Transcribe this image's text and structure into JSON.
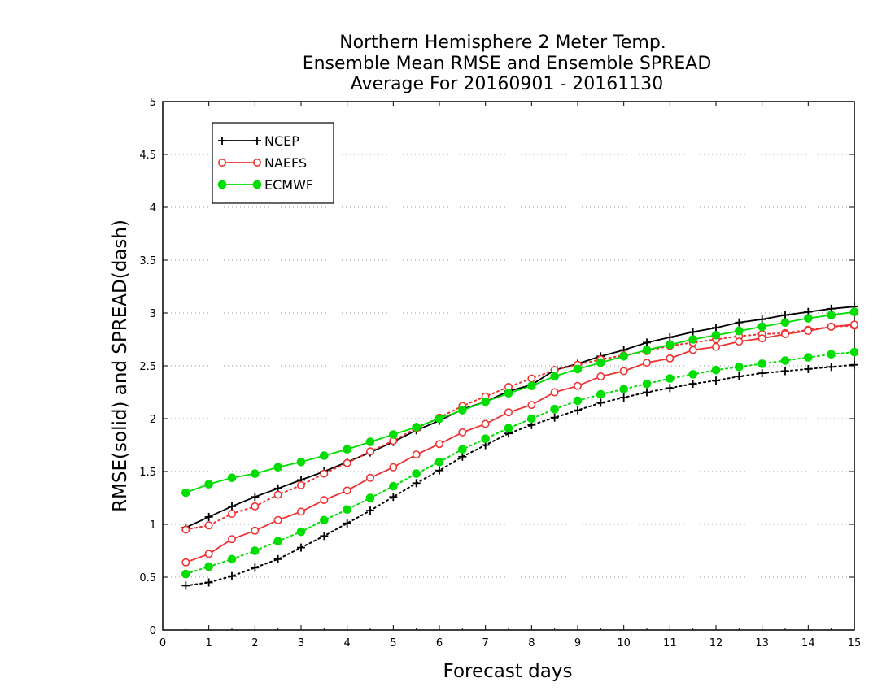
{
  "chart_data": {
    "type": "line",
    "title_lines": [
      "Northern Hemisphere 2 Meter Temp.",
      "Ensemble Mean RMSE and Ensemble SPREAD",
      "Average For 20160901 - 20161130"
    ],
    "xlabel": "Forecast days",
    "ylabel": "RMSE(solid) and SPREAD(dash)",
    "xlim": [
      0,
      15
    ],
    "ylim": [
      0,
      5
    ],
    "x_ticks": [
      "0",
      "1",
      "2",
      "3",
      "4",
      "5",
      "6",
      "7",
      "8",
      "9",
      "10",
      "11",
      "12",
      "13",
      "14",
      "15"
    ],
    "y_ticks": [
      "0",
      "0.5",
      "1",
      "1.5",
      "2",
      "2.5",
      "3",
      "3.5",
      "4",
      "4.5",
      "5"
    ],
    "horizontal_grid": true,
    "legend_position": "top-left",
    "x": [
      0.5,
      1,
      1.5,
      2,
      2.5,
      3,
      3.5,
      4,
      4.5,
      5,
      5.5,
      6,
      6.5,
      7,
      7.5,
      8,
      8.5,
      9,
      9.5,
      10,
      10.5,
      11,
      11.5,
      12,
      12.5,
      13,
      13.5,
      14,
      14.5,
      15
    ],
    "series": [
      {
        "name": "NCEP",
        "color": "#000000",
        "marker": "plus",
        "rmse": [
          0.97,
          1.07,
          1.17,
          1.26,
          1.34,
          1.42,
          1.5,
          1.59,
          1.68,
          1.78,
          1.89,
          1.98,
          2.09,
          2.16,
          2.26,
          2.32,
          2.46,
          2.52,
          2.59,
          2.65,
          2.72,
          2.77,
          2.82,
          2.86,
          2.91,
          2.94,
          2.98,
          3.01,
          3.04,
          3.06
        ],
        "spread": [
          0.42,
          0.45,
          0.51,
          0.59,
          0.67,
          0.78,
          0.89,
          1.01,
          1.13,
          1.26,
          1.39,
          1.51,
          1.64,
          1.75,
          1.86,
          1.94,
          2.01,
          2.08,
          2.15,
          2.2,
          2.25,
          2.29,
          2.33,
          2.36,
          2.4,
          2.43,
          2.45,
          2.47,
          2.49,
          2.51
        ]
      },
      {
        "name": "NAEFS",
        "color": "#ee3333",
        "marker": "circle-open",
        "rmse": [
          0.64,
          0.72,
          0.86,
          0.94,
          1.04,
          1.12,
          1.23,
          1.32,
          1.44,
          1.54,
          1.66,
          1.76,
          1.87,
          1.95,
          2.06,
          2.13,
          2.25,
          2.31,
          2.4,
          2.45,
          2.53,
          2.57,
          2.65,
          2.68,
          2.73,
          2.76,
          2.8,
          2.83,
          2.87,
          2.89
        ],
        "spread": [
          0.95,
          0.99,
          1.1,
          1.17,
          1.28,
          1.37,
          1.48,
          1.58,
          1.69,
          1.79,
          1.91,
          2.01,
          2.12,
          2.21,
          2.3,
          2.38,
          2.46,
          2.51,
          2.56,
          2.6,
          2.64,
          2.69,
          2.72,
          2.75,
          2.78,
          2.8,
          2.81,
          2.84,
          2.87,
          2.88
        ]
      },
      {
        "name": "ECMWF",
        "color": "#00dd00",
        "marker": "circle-filled",
        "rmse": [
          1.3,
          1.38,
          1.44,
          1.48,
          1.54,
          1.59,
          1.65,
          1.71,
          1.78,
          1.85,
          1.92,
          2.0,
          2.08,
          2.16,
          2.24,
          2.31,
          2.4,
          2.47,
          2.53,
          2.59,
          2.65,
          2.7,
          2.75,
          2.79,
          2.83,
          2.87,
          2.91,
          2.95,
          2.98,
          3.01
        ],
        "spread": [
          0.53,
          0.6,
          0.67,
          0.75,
          0.84,
          0.93,
          1.04,
          1.14,
          1.25,
          1.36,
          1.48,
          1.59,
          1.71,
          1.81,
          1.91,
          2.0,
          2.09,
          2.17,
          2.23,
          2.28,
          2.33,
          2.38,
          2.42,
          2.46,
          2.49,
          2.52,
          2.55,
          2.58,
          2.61,
          2.63
        ]
      }
    ]
  }
}
